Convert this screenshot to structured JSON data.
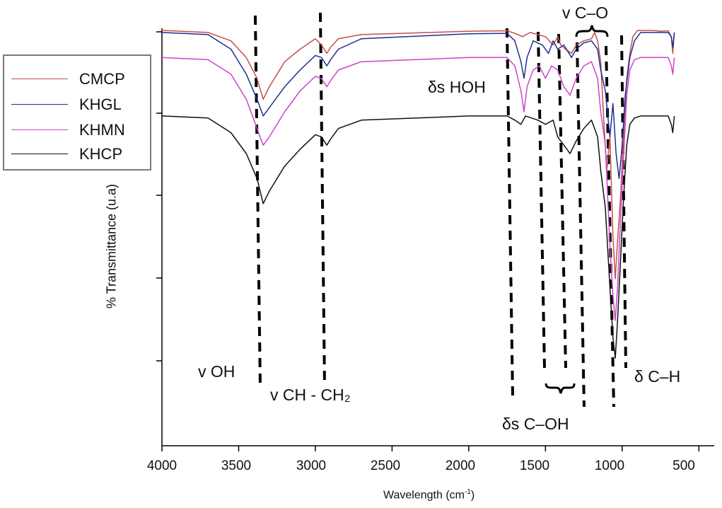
{
  "chart_data": {
    "type": "line",
    "xlabel_text": "Wavelength (cm",
    "xlabel_sup": "-1",
    "xlabel_close": ")",
    "ylabel": "% Transmittance (u.a)",
    "xlim": [
      4000,
      400
    ],
    "x_ticks": [
      4000,
      3500,
      3000,
      2500,
      2000,
      1500,
      1000,
      500
    ],
    "legend_position": "top-left",
    "legend_colors": [
      "#c0504d",
      "#1f2f8f",
      "#cc44cc",
      "#111111"
    ],
    "series": [
      {
        "name": "CMCP",
        "color": "#c0504d",
        "points": [
          [
            4000,
            99.5
          ],
          [
            3700,
            99
          ],
          [
            3550,
            97
          ],
          [
            3450,
            93
          ],
          [
            3380,
            88
          ],
          [
            3340,
            83
          ],
          [
            3300,
            86
          ],
          [
            3200,
            92
          ],
          [
            3100,
            95
          ],
          [
            3000,
            97.5
          ],
          [
            2960,
            96
          ],
          [
            2925,
            94
          ],
          [
            2900,
            95.5
          ],
          [
            2850,
            97.5
          ],
          [
            2700,
            98.5
          ],
          [
            2000,
            99.3
          ],
          [
            1750,
            99.4
          ],
          [
            1700,
            98.8
          ],
          [
            1650,
            98
          ],
          [
            1600,
            99
          ],
          [
            1500,
            98
          ],
          [
            1450,
            96
          ],
          [
            1420,
            98
          ],
          [
            1400,
            96
          ],
          [
            1370,
            95
          ],
          [
            1330,
            94
          ],
          [
            1300,
            96
          ],
          [
            1250,
            97
          ],
          [
            1200,
            97.5
          ],
          [
            1180,
            99
          ],
          [
            1160,
            97
          ],
          [
            1140,
            92
          ],
          [
            1120,
            78
          ],
          [
            1100,
            66
          ],
          [
            1080,
            74
          ],
          [
            1060,
            50
          ],
          [
            1045,
            40
          ],
          [
            1030,
            49
          ],
          [
            1010,
            60
          ],
          [
            990,
            75
          ],
          [
            970,
            88
          ],
          [
            950,
            94
          ],
          [
            930,
            98
          ],
          [
            900,
            99.5
          ],
          [
            800,
            99.5
          ],
          [
            750,
            99.3
          ],
          [
            700,
            99.4
          ],
          [
            680,
            98
          ],
          [
            670,
            94
          ],
          [
            660,
            99
          ]
        ]
      },
      {
        "name": "KHGL",
        "color": "#1f2f8f",
        "points": [
          [
            4000,
            99
          ],
          [
            3700,
            98.5
          ],
          [
            3550,
            95
          ],
          [
            3450,
            89
          ],
          [
            3380,
            83
          ],
          [
            3340,
            79
          ],
          [
            3300,
            81
          ],
          [
            3200,
            86
          ],
          [
            3100,
            90
          ],
          [
            3000,
            93.5
          ],
          [
            2960,
            93
          ],
          [
            2925,
            91
          ],
          [
            2900,
            92.5
          ],
          [
            2850,
            95
          ],
          [
            2700,
            97.5
          ],
          [
            2000,
            98.7
          ],
          [
            1750,
            98.8
          ],
          [
            1700,
            97
          ],
          [
            1660,
            92
          ],
          [
            1640,
            88
          ],
          [
            1620,
            93
          ],
          [
            1580,
            97
          ],
          [
            1520,
            96
          ],
          [
            1480,
            94
          ],
          [
            1450,
            97
          ],
          [
            1420,
            95
          ],
          [
            1380,
            96
          ],
          [
            1330,
            93
          ],
          [
            1300,
            95
          ],
          [
            1250,
            96.5
          ],
          [
            1200,
            97
          ],
          [
            1160,
            95
          ],
          [
            1140,
            90
          ],
          [
            1110,
            85
          ],
          [
            1080,
            74
          ],
          [
            1060,
            82
          ],
          [
            1040,
            70
          ],
          [
            1020,
            64
          ],
          [
            1000,
            72
          ],
          [
            980,
            84
          ],
          [
            950,
            93
          ],
          [
            920,
            97
          ],
          [
            880,
            99
          ],
          [
            800,
            99
          ],
          [
            700,
            99
          ],
          [
            680,
            98
          ],
          [
            670,
            95.5
          ],
          [
            660,
            99
          ]
        ]
      },
      {
        "name": "KHMN",
        "color": "#cc44cc",
        "points": [
          [
            4000,
            93
          ],
          [
            3700,
            92.5
          ],
          [
            3550,
            89
          ],
          [
            3450,
            83
          ],
          [
            3380,
            76
          ],
          [
            3340,
            72
          ],
          [
            3300,
            74
          ],
          [
            3200,
            80
          ],
          [
            3100,
            85
          ],
          [
            3000,
            88.5
          ],
          [
            2960,
            88
          ],
          [
            2925,
            86
          ],
          [
            2900,
            87.5
          ],
          [
            2850,
            90
          ],
          [
            2700,
            92
          ],
          [
            2000,
            93
          ],
          [
            1750,
            93
          ],
          [
            1700,
            91
          ],
          [
            1660,
            85
          ],
          [
            1640,
            80
          ],
          [
            1620,
            86
          ],
          [
            1580,
            90
          ],
          [
            1540,
            91
          ],
          [
            1500,
            88
          ],
          [
            1460,
            91
          ],
          [
            1420,
            90
          ],
          [
            1380,
            86
          ],
          [
            1340,
            84
          ],
          [
            1300,
            88
          ],
          [
            1250,
            91
          ],
          [
            1200,
            92
          ],
          [
            1160,
            88
          ],
          [
            1140,
            80
          ],
          [
            1110,
            72
          ],
          [
            1080,
            48
          ],
          [
            1060,
            36
          ],
          [
            1045,
            30
          ],
          [
            1030,
            38
          ],
          [
            1010,
            55
          ],
          [
            990,
            70
          ],
          [
            970,
            84
          ],
          [
            950,
            90
          ],
          [
            920,
            92.5
          ],
          [
            880,
            93
          ],
          [
            800,
            93
          ],
          [
            700,
            93
          ],
          [
            680,
            91
          ],
          [
            670,
            89
          ],
          [
            660,
            93
          ]
        ]
      },
      {
        "name": "KHCP",
        "color": "#111111",
        "points": [
          [
            4000,
            79
          ],
          [
            3700,
            78.5
          ],
          [
            3550,
            75
          ],
          [
            3450,
            70
          ],
          [
            3380,
            64
          ],
          [
            3340,
            58
          ],
          [
            3300,
            61
          ],
          [
            3200,
            67
          ],
          [
            3100,
            71
          ],
          [
            3000,
            74.5
          ],
          [
            2960,
            74
          ],
          [
            2925,
            72
          ],
          [
            2900,
            73.5
          ],
          [
            2850,
            76
          ],
          [
            2700,
            78
          ],
          [
            2000,
            79
          ],
          [
            1750,
            79
          ],
          [
            1700,
            78
          ],
          [
            1660,
            77
          ],
          [
            1630,
            79
          ],
          [
            1550,
            78
          ],
          [
            1500,
            77
          ],
          [
            1450,
            78
          ],
          [
            1420,
            74
          ],
          [
            1380,
            72
          ],
          [
            1340,
            70
          ],
          [
            1300,
            73
          ],
          [
            1250,
            76
          ],
          [
            1200,
            78
          ],
          [
            1160,
            74
          ],
          [
            1140,
            66
          ],
          [
            1110,
            57
          ],
          [
            1080,
            38
          ],
          [
            1060,
            26
          ],
          [
            1045,
            21
          ],
          [
            1030,
            30
          ],
          [
            1010,
            45
          ],
          [
            990,
            60
          ],
          [
            970,
            72
          ],
          [
            950,
            77
          ],
          [
            920,
            78.5
          ],
          [
            880,
            79
          ],
          [
            800,
            79
          ],
          [
            700,
            79
          ],
          [
            680,
            77
          ],
          [
            670,
            75
          ],
          [
            660,
            79
          ]
        ]
      }
    ]
  },
  "annotations": {
    "v_oh": "v OH",
    "v_ch_ch2": "v CH  -  CH₂",
    "ds_hoh": "δs HOH",
    "v_co": "v C–O",
    "ds_coh": "δs C–OH",
    "d_ch": "δ C–H"
  }
}
